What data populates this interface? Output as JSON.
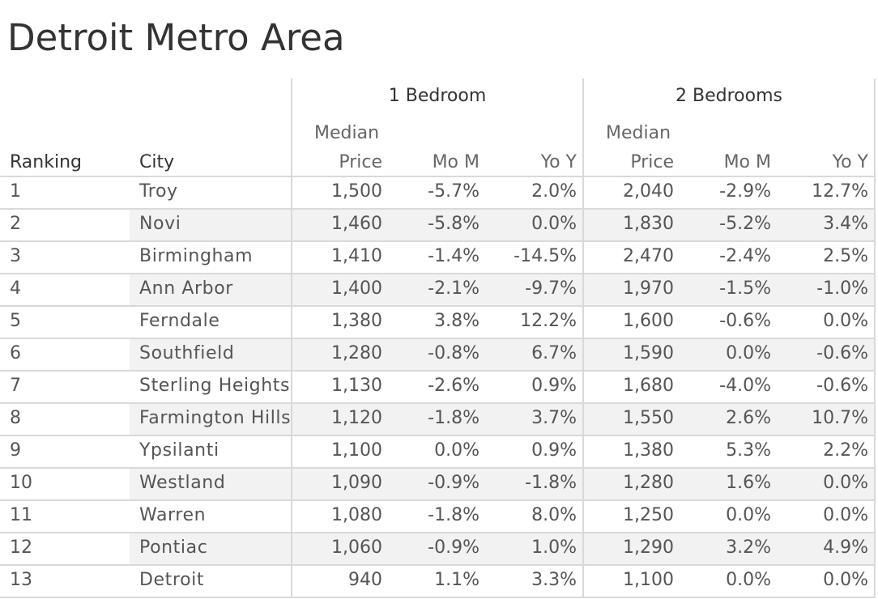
{
  "chart_data": {
    "type": "table",
    "title": "Detroit Metro Area",
    "groups": [
      "1 Bedroom",
      "2 Bedrooms"
    ],
    "sub_header_top": "Median",
    "columns": [
      "Ranking",
      "City",
      "Price",
      "Mo M",
      "Yo Y",
      "Price",
      "Mo M",
      "Yo Y"
    ],
    "rows": [
      [
        "1",
        "Troy",
        "1,500",
        "-5.7%",
        "2.0%",
        "2,040",
        "-2.9%",
        "12.7%"
      ],
      [
        "2",
        "Novi",
        "1,460",
        "-5.8%",
        "0.0%",
        "1,830",
        "-5.2%",
        "3.4%"
      ],
      [
        "3",
        "Birmingham",
        "1,410",
        "-1.4%",
        "-14.5%",
        "2,470",
        "-2.4%",
        "2.5%"
      ],
      [
        "4",
        "Ann Arbor",
        "1,400",
        "-2.1%",
        "-9.7%",
        "1,970",
        "-1.5%",
        "-1.0%"
      ],
      [
        "5",
        "Ferndale",
        "1,380",
        "3.8%",
        "12.2%",
        "1,600",
        "-0.6%",
        "0.0%"
      ],
      [
        "6",
        "Southfield",
        "1,280",
        "-0.8%",
        "6.7%",
        "1,590",
        "0.0%",
        "-0.6%"
      ],
      [
        "7",
        "Sterling Heights",
        "1,130",
        "-2.6%",
        "0.9%",
        "1,680",
        "-4.0%",
        "-0.6%"
      ],
      [
        "8",
        "Farmington Hills",
        "1,120",
        "-1.8%",
        "3.7%",
        "1,550",
        "2.6%",
        "10.7%"
      ],
      [
        "9",
        "Ypsilanti",
        "1,100",
        "0.0%",
        "0.9%",
        "1,380",
        "5.3%",
        "2.2%"
      ],
      [
        "10",
        "Westland",
        "1,090",
        "-0.9%",
        "-1.8%",
        "1,280",
        "1.6%",
        "0.0%"
      ],
      [
        "11",
        "Warren",
        "1,080",
        "-1.8%",
        "8.0%",
        "1,250",
        "0.0%",
        "0.0%"
      ],
      [
        "12",
        "Pontiac",
        "1,060",
        "-0.9%",
        "1.0%",
        "1,290",
        "3.2%",
        "4.9%"
      ],
      [
        "13",
        "Detroit",
        "940",
        "1.1%",
        "3.3%",
        "1,100",
        "0.0%",
        "0.0%"
      ]
    ]
  }
}
